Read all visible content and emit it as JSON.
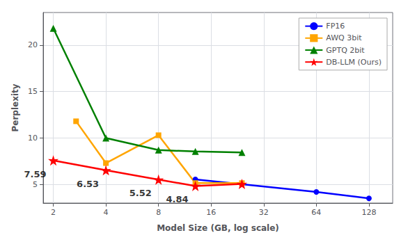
{
  "chart_data": {
    "type": "line",
    "xlabel": "Model Size (GB, log scale)",
    "ylabel": "Perplexity",
    "log": "x",
    "xlim": [
      1.75,
      175
    ],
    "xticks": [
      2,
      4,
      8,
      16,
      32,
      64,
      128
    ],
    "ylim": [
      3.0,
      23.5
    ],
    "yticks": [
      5,
      10,
      15,
      20
    ],
    "grid": true,
    "legend": "upper right",
    "series": [
      {
        "name": "FP16",
        "color": "#0000ff",
        "marker": "circle",
        "x": [
          13,
          64,
          128
        ],
        "values": [
          5.55,
          4.2,
          3.5
        ]
      },
      {
        "name": "AWQ 3bit",
        "color": "#ffa500",
        "marker": "square",
        "x": [
          2.7,
          4,
          8,
          13,
          24
        ],
        "values": [
          11.8,
          7.3,
          10.3,
          5.15,
          5.15
        ]
      },
      {
        "name": "GPTQ 2bit",
        "color": "#008000",
        "marker": "triangle",
        "x": [
          2,
          4,
          8,
          13,
          24
        ],
        "values": [
          21.8,
          10.0,
          8.7,
          8.55,
          8.45
        ]
      },
      {
        "name": "DB-LLM (Ours)",
        "color": "#ff0000",
        "marker": "star",
        "x": [
          2,
          4,
          8,
          13,
          24
        ],
        "values": [
          7.59,
          6.53,
          5.52,
          4.84,
          5.05
        ]
      }
    ],
    "annotations": [
      {
        "text": "7.59",
        "x": 2,
        "y": 7.59
      },
      {
        "text": "6.53",
        "x": 4,
        "y": 6.53
      },
      {
        "text": "5.52",
        "x": 8,
        "y": 5.52
      },
      {
        "text": "4.84",
        "x": 13,
        "y": 4.84
      }
    ]
  }
}
